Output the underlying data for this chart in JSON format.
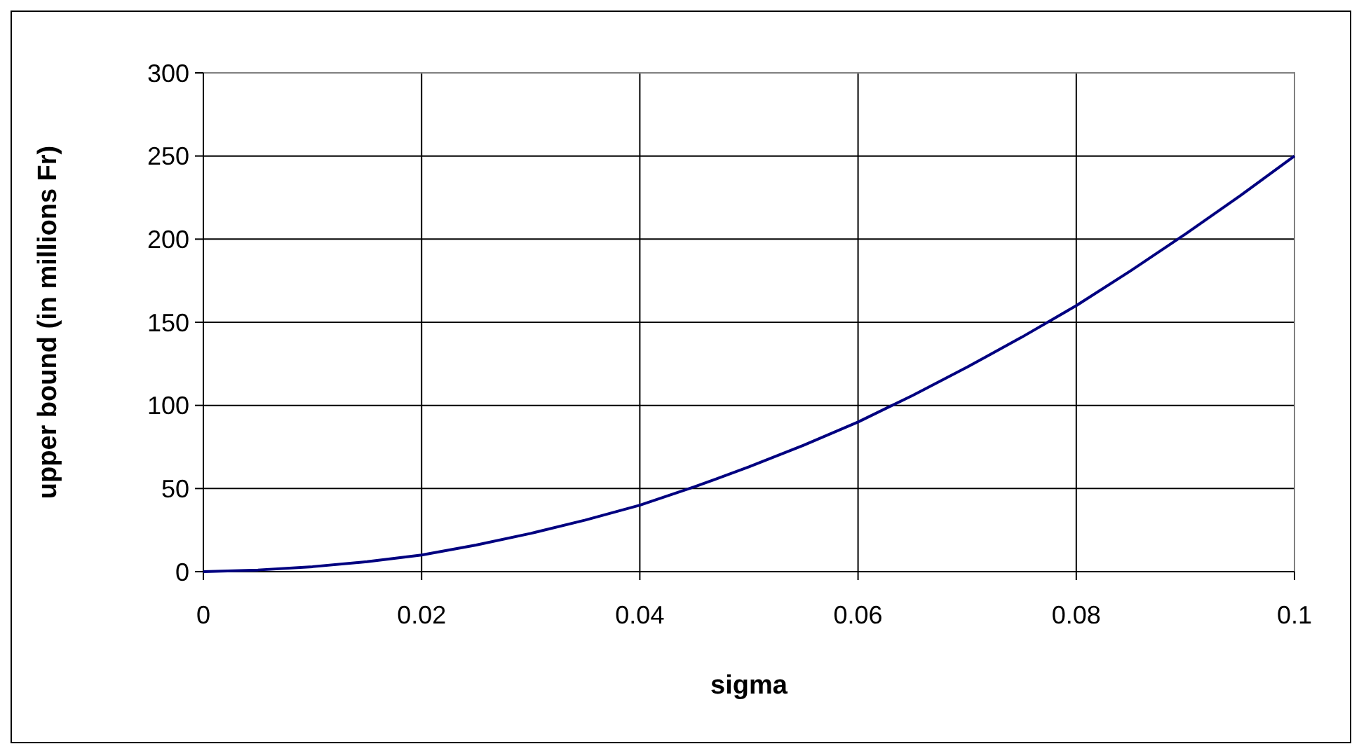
{
  "chart_data": {
    "type": "line",
    "xlabel": "sigma",
    "ylabel": "upper bound (in millions Fr)",
    "x": [
      0,
      0.005,
      0.01,
      0.015,
      0.02,
      0.025,
      0.03,
      0.035,
      0.04,
      0.045,
      0.05,
      0.055,
      0.06,
      0.065,
      0.07,
      0.075,
      0.08,
      0.085,
      0.09,
      0.095,
      0.1
    ],
    "series": [
      {
        "color": "#000080",
        "values": [
          0,
          1,
          3,
          6,
          10,
          16,
          23,
          31,
          40,
          51,
          63,
          76,
          90,
          106,
          123,
          141,
          160,
          181,
          203,
          226,
          250
        ]
      }
    ],
    "xlim": [
      0,
      0.1
    ],
    "xticks": [
      0,
      0.02,
      0.04,
      0.06,
      0.08,
      0.1
    ],
    "ylim": [
      0,
      300
    ],
    "yticks": [
      0,
      50,
      100,
      150,
      200,
      250,
      300
    ],
    "grid": true,
    "marker": "none",
    "line_style": "solid"
  }
}
